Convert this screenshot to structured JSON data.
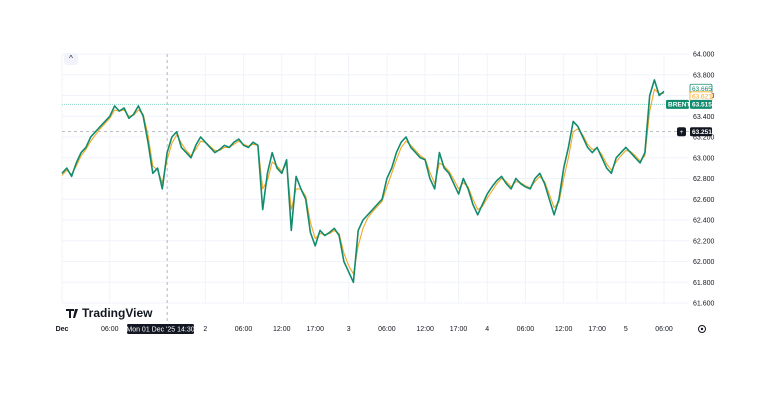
{
  "chart_data": {
    "type": "line",
    "series": [
      {
        "name": "BRENT",
        "color": "#138b6e",
        "x": [
          0,
          1,
          2,
          3,
          4,
          5,
          6,
          7,
          8,
          9,
          10,
          11,
          12,
          13,
          14,
          15,
          16,
          17,
          18,
          19,
          20,
          21,
          22,
          23,
          24,
          25,
          26,
          27,
          28,
          29,
          30,
          31,
          32,
          33,
          34,
          35,
          36,
          37,
          38,
          39,
          40,
          41,
          42,
          43,
          44,
          45,
          46,
          47,
          48,
          49,
          50,
          51,
          52,
          53,
          54,
          55,
          56,
          57,
          58,
          59,
          60,
          61,
          62,
          63,
          64,
          65,
          66,
          67,
          68,
          69,
          70,
          71,
          72,
          73,
          74,
          75,
          76,
          77,
          78,
          79,
          80,
          81,
          82,
          83,
          84,
          85,
          86,
          87,
          88,
          89,
          90,
          91,
          92,
          93,
          94,
          95,
          96,
          97,
          98,
          99,
          100,
          101,
          102,
          103,
          104,
          105,
          106,
          107,
          108,
          109,
          110,
          111,
          112,
          113,
          114,
          115,
          116,
          117,
          118,
          119,
          120,
          121,
          122,
          123,
          124,
          125,
          126
        ],
        "y": [
          62.85,
          62.9,
          62.82,
          62.95,
          63.05,
          63.1,
          63.2,
          63.25,
          63.3,
          63.35,
          63.4,
          63.5,
          63.45,
          63.48,
          63.38,
          63.42,
          63.5,
          63.4,
          63.15,
          62.85,
          62.9,
          62.7,
          63.05,
          63.2,
          63.25,
          63.1,
          63.05,
          63.0,
          63.12,
          63.2,
          63.15,
          63.1,
          63.05,
          63.08,
          63.12,
          63.1,
          63.15,
          63.18,
          63.12,
          63.1,
          63.15,
          63.12,
          62.5,
          62.85,
          63.05,
          62.9,
          62.85,
          62.98,
          62.3,
          62.82,
          62.7,
          62.6,
          62.28,
          62.15,
          62.3,
          62.25,
          62.28,
          62.32,
          62.25,
          62.0,
          61.9,
          61.8,
          62.3,
          62.4,
          62.45,
          62.5,
          62.55,
          62.6,
          62.8,
          62.9,
          63.05,
          63.15,
          63.2,
          63.1,
          63.05,
          63.0,
          62.98,
          62.8,
          62.7,
          63.05,
          62.9,
          62.85,
          62.75,
          62.65,
          62.8,
          62.7,
          62.55,
          62.45,
          62.55,
          62.65,
          62.72,
          62.78,
          62.82,
          62.75,
          62.7,
          62.8,
          62.75,
          62.72,
          62.7,
          62.8,
          62.85,
          62.75,
          62.6,
          62.45,
          62.6,
          62.9,
          63.1,
          63.35,
          63.3,
          63.2,
          63.1,
          63.05,
          63.1,
          63.0,
          62.9,
          62.85,
          63.0,
          63.05,
          63.1,
          63.05,
          63.0,
          62.95,
          63.05,
          63.6,
          63.75,
          63.6,
          63.64
        ]
      },
      {
        "name": "",
        "color": "#f5a623",
        "x": [
          0,
          1,
          2,
          3,
          4,
          5,
          6,
          7,
          8,
          9,
          10,
          11,
          12,
          13,
          14,
          15,
          16,
          17,
          18,
          19,
          20,
          21,
          22,
          23,
          24,
          25,
          26,
          27,
          28,
          29,
          30,
          31,
          32,
          33,
          34,
          35,
          36,
          37,
          38,
          39,
          40,
          41,
          42,
          43,
          44,
          45,
          46,
          47,
          48,
          49,
          50,
          51,
          52,
          53,
          54,
          55,
          56,
          57,
          58,
          59,
          60,
          61,
          62,
          63,
          64,
          65,
          66,
          67,
          68,
          69,
          70,
          71,
          72,
          73,
          74,
          75,
          76,
          77,
          78,
          79,
          80,
          81,
          82,
          83,
          84,
          85,
          86,
          87,
          88,
          89,
          90,
          91,
          92,
          93,
          94,
          95,
          96,
          97,
          98,
          99,
          100,
          101,
          102,
          103,
          104,
          105,
          106,
          107,
          108,
          109,
          110,
          111,
          112,
          113,
          114,
          115,
          116,
          117,
          118,
          119,
          120,
          121,
          122,
          123,
          124,
          125,
          126
        ],
        "y": [
          62.83,
          62.88,
          62.84,
          62.92,
          63.02,
          63.08,
          63.16,
          63.22,
          63.28,
          63.33,
          63.38,
          63.46,
          63.45,
          63.46,
          63.4,
          63.41,
          63.46,
          63.42,
          63.22,
          62.92,
          62.88,
          62.76,
          62.98,
          63.14,
          63.22,
          63.14,
          63.07,
          63.02,
          63.08,
          63.16,
          63.15,
          63.11,
          63.07,
          63.07,
          63.1,
          63.1,
          63.13,
          63.16,
          63.13,
          63.11,
          63.13,
          63.12,
          62.7,
          62.78,
          62.96,
          62.92,
          62.87,
          62.94,
          62.5,
          62.7,
          62.7,
          62.63,
          62.38,
          62.22,
          62.27,
          62.26,
          62.27,
          62.3,
          62.27,
          62.08,
          61.96,
          61.88,
          62.15,
          62.32,
          62.42,
          62.48,
          62.53,
          62.58,
          62.72,
          62.85,
          62.98,
          63.1,
          63.16,
          63.12,
          63.07,
          63.02,
          62.99,
          62.86,
          62.75,
          62.95,
          62.92,
          62.87,
          62.79,
          62.7,
          62.76,
          62.72,
          62.6,
          62.5,
          62.53,
          62.61,
          62.68,
          62.75,
          62.8,
          62.77,
          62.72,
          62.77,
          62.76,
          62.73,
          62.71,
          62.77,
          62.82,
          62.77,
          62.65,
          62.52,
          62.57,
          62.8,
          63.0,
          63.25,
          63.28,
          63.22,
          63.13,
          63.08,
          63.09,
          63.03,
          62.94,
          62.88,
          62.96,
          63.02,
          63.07,
          63.06,
          63.02,
          62.97,
          63.02,
          63.45,
          63.66,
          63.62,
          63.62
        ]
      }
    ],
    "ylim": [
      61.6,
      64.0
    ],
    "y_ticks": [
      "64.000",
      "63.800",
      "63.600",
      "63.400",
      "63.200",
      "63.000",
      "62.800",
      "62.600",
      "62.400",
      "62.200",
      "62.000",
      "61.800",
      "61.600"
    ],
    "x_ticks": [
      {
        "label": "Dec",
        "x": 0,
        "bold": true
      },
      {
        "label": "06:00",
        "x": 10
      },
      {
        "label": "2",
        "x": 30
      },
      {
        "label": "06:00",
        "x": 38
      },
      {
        "label": "12:00",
        "x": 46
      },
      {
        "label": "17:00",
        "x": 53
      },
      {
        "label": "3",
        "x": 60
      },
      {
        "label": "06:00",
        "x": 68
      },
      {
        "label": "12:00",
        "x": 76
      },
      {
        "label": "17:00",
        "x": 83
      },
      {
        "label": "4",
        "x": 89
      },
      {
        "label": "06:00",
        "x": 97
      },
      {
        "label": "12:00",
        "x": 105
      },
      {
        "label": "17:00",
        "x": 112
      },
      {
        "label": "5",
        "x": 118
      },
      {
        "label": "06:00",
        "x": 126
      }
    ],
    "crosshair": {
      "x_label": "Mon 01 Dec '25   14:30",
      "y_label": "63.251",
      "x": 22,
      "y": 63.251
    },
    "price_tags": [
      {
        "label": "63.665",
        "value": 63.665,
        "style": "outline-green"
      },
      {
        "label": "63.621",
        "value": 63.621,
        "style": "outline-orange"
      },
      {
        "label": "BRENT",
        "value": 63.515,
        "style": "filled-green"
      },
      {
        "label": "63.515",
        "value": 63.515,
        "style": "filled-green"
      }
    ],
    "reference_line": 63.515,
    "grid": true,
    "legend": "none"
  },
  "watermark": {
    "brand": "TradingView"
  },
  "controls": {
    "collapse_glyph": "^",
    "settings_glyph": "⚙",
    "crosshair_add_glyph": "+"
  }
}
